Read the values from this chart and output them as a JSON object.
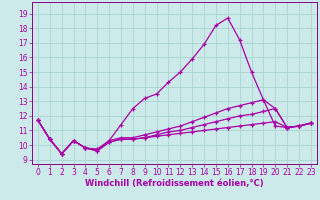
{
  "xlabel": "Windchill (Refroidissement éolien,°C)",
  "bg_color": "#cceaea",
  "grid_color": "#aad4d4",
  "line_color": "#aa00aa",
  "spine_color": "#880088",
  "x_ticks": [
    0,
    1,
    2,
    3,
    4,
    5,
    6,
    7,
    8,
    9,
    10,
    11,
    12,
    13,
    14,
    15,
    16,
    17,
    18,
    19,
    20,
    21,
    22,
    23
  ],
  "y_ticks": [
    9,
    10,
    11,
    12,
    13,
    14,
    15,
    16,
    17,
    18,
    19
  ],
  "ylim": [
    8.7,
    19.8
  ],
  "xlim": [
    -0.5,
    23.5
  ],
  "curve1_y": [
    11.7,
    10.4,
    9.4,
    10.3,
    9.8,
    9.7,
    10.3,
    11.4,
    12.5,
    13.2,
    13.5,
    14.3,
    15.0,
    15.9,
    16.9,
    18.2,
    18.7,
    17.2,
    15.0,
    13.1,
    11.3,
    11.2,
    11.3,
    11.5
  ],
  "curve2_y": [
    11.7,
    10.4,
    9.4,
    10.3,
    9.8,
    9.7,
    10.3,
    10.5,
    10.5,
    10.7,
    10.9,
    11.1,
    11.3,
    11.6,
    11.9,
    12.2,
    12.5,
    12.7,
    12.9,
    13.1,
    12.5,
    11.2,
    11.3,
    11.5
  ],
  "curve3_y": [
    11.7,
    10.4,
    9.4,
    10.3,
    9.8,
    9.6,
    10.2,
    10.4,
    10.4,
    10.5,
    10.7,
    10.9,
    11.0,
    11.2,
    11.4,
    11.6,
    11.8,
    12.0,
    12.1,
    12.3,
    12.5,
    11.2,
    11.3,
    11.5
  ],
  "curve4_y": [
    11.7,
    10.4,
    9.4,
    10.3,
    9.8,
    9.6,
    10.2,
    10.4,
    10.4,
    10.5,
    10.6,
    10.7,
    10.8,
    10.9,
    11.0,
    11.1,
    11.2,
    11.3,
    11.4,
    11.5,
    11.6,
    11.2,
    11.3,
    11.5
  ],
  "tick_fontsize": 5.5,
  "xlabel_fontsize": 6.0
}
